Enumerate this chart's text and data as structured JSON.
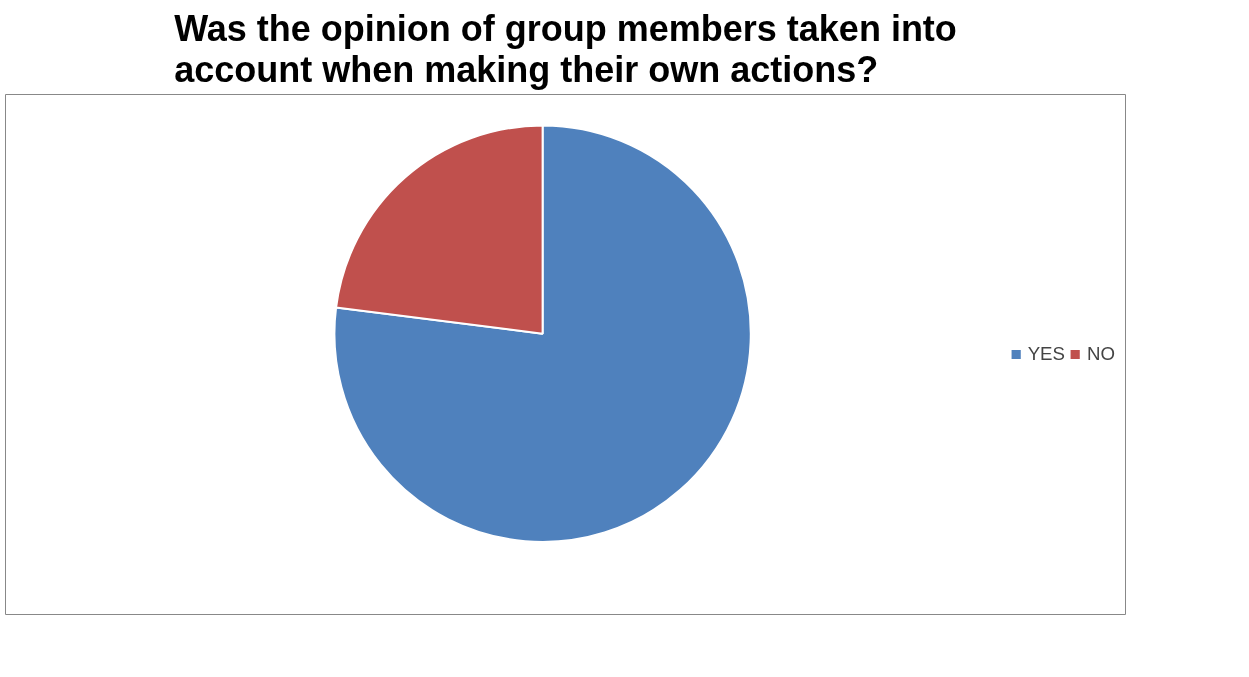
{
  "chart_data": {
    "type": "pie",
    "title": "Was the opinion of group members taken into account when making their own actions?",
    "categories": [
      "YES",
      "NO"
    ],
    "values": [
      77,
      23
    ],
    "colors": [
      "#4f81bd",
      "#c0504d"
    ],
    "legend": "right"
  }
}
